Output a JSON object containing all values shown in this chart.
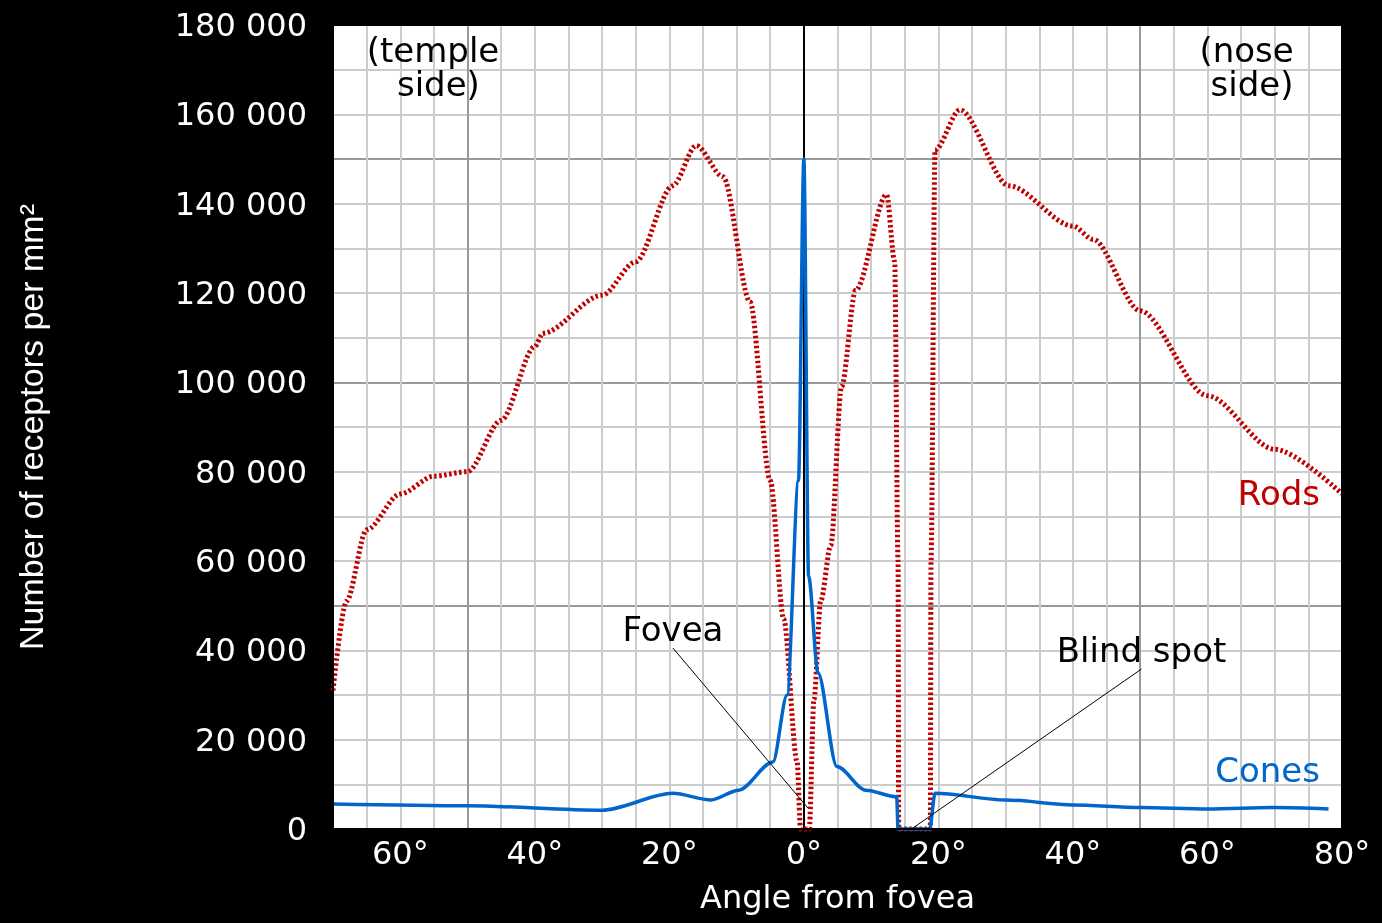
{
  "chart_data": {
    "type": "line",
    "xlabel": "Angle from fovea",
    "ylabel": "Number of receptors per mm²",
    "xlim": [
      -70,
      80
    ],
    "xticks": [
      {
        "value": -70,
        "label": null
      },
      {
        "value": -65,
        "label": null
      },
      {
        "value": -60,
        "label": "60°"
      },
      {
        "value": -55,
        "label": null
      },
      {
        "value": -50,
        "label": null
      },
      {
        "value": -45,
        "label": null
      },
      {
        "value": -40,
        "label": "40°"
      },
      {
        "value": -35,
        "label": null
      },
      {
        "value": -30,
        "label": null
      },
      {
        "value": -25,
        "label": null
      },
      {
        "value": -20,
        "label": "20°"
      },
      {
        "value": -15,
        "label": null
      },
      {
        "value": -10,
        "label": null
      },
      {
        "value": -5,
        "label": null
      },
      {
        "value": 0,
        "label": "0°"
      },
      {
        "value": 5,
        "label": null
      },
      {
        "value": 10,
        "label": null
      },
      {
        "value": 15,
        "label": null
      },
      {
        "value": 20,
        "label": "20°"
      },
      {
        "value": 25,
        "label": null
      },
      {
        "value": 30,
        "label": null
      },
      {
        "value": 35,
        "label": null
      },
      {
        "value": 40,
        "label": "40°"
      },
      {
        "value": 45,
        "label": null
      },
      {
        "value": 50,
        "label": null
      },
      {
        "value": 55,
        "label": null
      },
      {
        "value": 60,
        "label": "60°"
      },
      {
        "value": 65,
        "label": null
      },
      {
        "value": 70,
        "label": null
      },
      {
        "value": 75,
        "label": null
      },
      {
        "value": 80,
        "label": "80°"
      }
    ],
    "ylim": [
      0,
      180000
    ],
    "yticks": [
      {
        "value": 0,
        "label": "0"
      },
      {
        "value": 10000,
        "label": null
      },
      {
        "value": 20000,
        "label": "20 000"
      },
      {
        "value": 30000,
        "label": null
      },
      {
        "value": 40000,
        "label": "40 000"
      },
      {
        "value": 50000,
        "label": null
      },
      {
        "value": 60000,
        "label": "60 000"
      },
      {
        "value": 70000,
        "label": null
      },
      {
        "value": 80000,
        "label": "80 000"
      },
      {
        "value": 90000,
        "label": null
      },
      {
        "value": 100000,
        "label": "100 000"
      },
      {
        "value": 110000,
        "label": null
      },
      {
        "value": 120000,
        "label": "120 000"
      },
      {
        "value": 130000,
        "label": null
      },
      {
        "value": 140000,
        "label": "140 000"
      },
      {
        "value": 150000,
        "label": null
      },
      {
        "value": 160000,
        "label": "160 000"
      },
      {
        "value": 170000,
        "label": null
      },
      {
        "value": 180000,
        "label": "180 000"
      }
    ],
    "grid": true,
    "legend": false,
    "marker": "none",
    "series": [
      {
        "name": "Rods",
        "color": "#c00000",
        "line_style": "dotted",
        "x": [
          -70,
          -68,
          -65,
          -60,
          -55,
          -50,
          -45,
          -40,
          -38.8,
          -30,
          -25,
          -19.5,
          -16,
          -12,
          -8,
          -5,
          -3,
          -1,
          -0.5,
          0.8,
          1.5,
          2.5,
          4,
          5.6,
          7.7,
          12.3,
          13.5,
          14,
          14.1,
          18.8,
          18.9,
          19.5,
          23.2,
          30.5,
          40,
          43,
          50,
          60,
          70,
          80
        ],
        "values": [
          31000,
          51000,
          67000,
          75000,
          79000,
          80000,
          91500,
          108000,
          111000,
          119500,
          127000,
          144000,
          153000,
          146000,
          118000,
          78000,
          47000,
          15000,
          0,
          0,
          29000,
          51000,
          63500,
          99000,
          120600,
          142000,
          127000,
          60000,
          0,
          0,
          60000,
          152000,
          161000,
          144000,
          135000,
          132000,
          116000,
          97000,
          85000,
          75000
        ]
      },
      {
        "name": "Cones",
        "color": "#0066cc",
        "line_style": "solid",
        "x": [
          -70,
          -50,
          -30,
          -19.5,
          -13.8,
          -9.7,
          -4.6,
          -2.5,
          -0.8,
          0,
          0.7,
          2.1,
          4.9,
          9.2,
          13.8,
          14,
          18.7,
          19.5,
          30,
          40,
          50,
          60,
          70,
          78
        ],
        "values": [
          5600,
          5200,
          4200,
          8000,
          6500,
          8700,
          15000,
          30000,
          78000,
          150000,
          56600,
          35000,
          14000,
          8700,
          7200,
          0,
          0,
          8000,
          6500,
          5400,
          4800,
          4500,
          4800,
          4500
        ]
      }
    ],
    "annotations": [
      "(temple side)",
      "(nose side)",
      {
        "text": "Fovea",
        "x": 0.6,
        "y": 4700
      },
      {
        "text": "Blind spot",
        "x": 16,
        "y": 0
      }
    ]
  }
}
